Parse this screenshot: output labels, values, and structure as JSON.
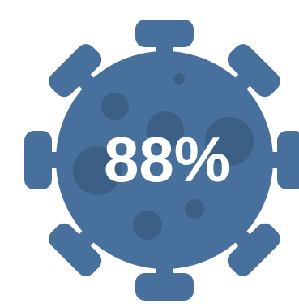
{
  "graphic": {
    "icon": "virus-icon",
    "percentage": "88%",
    "colors": {
      "body": "#48709d",
      "spots": "#3c5f86",
      "text": "#ffffff",
      "background": "#ffffff"
    }
  }
}
